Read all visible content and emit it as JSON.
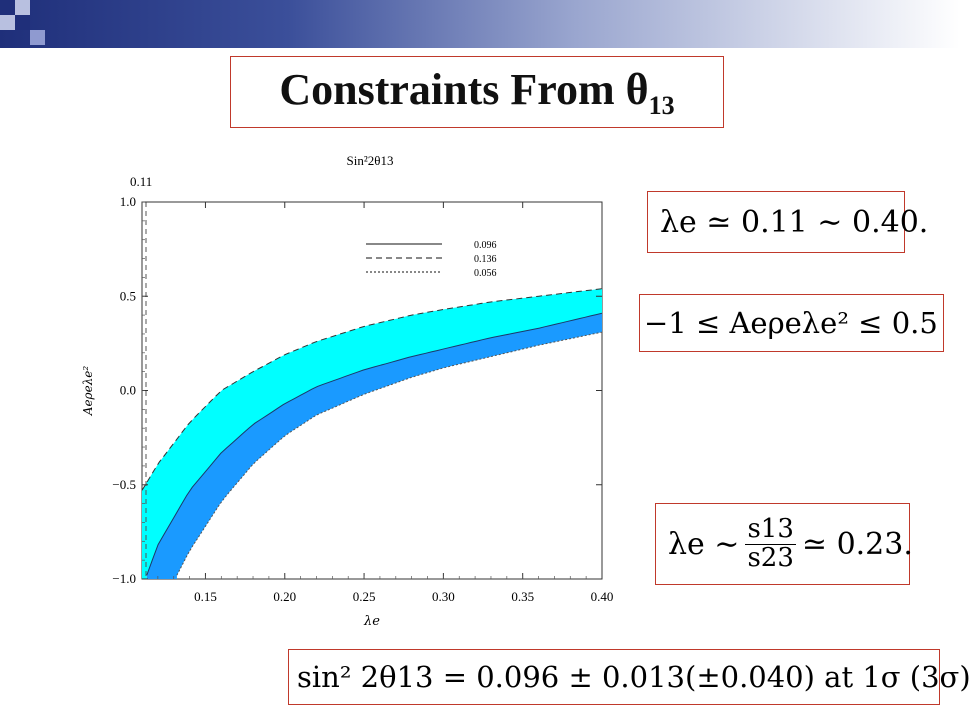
{
  "slide": {
    "title_text": "Constraints From θ",
    "title_sub": "13",
    "eq_lambda_range": "λe ≃ 0.11 ∼ 0.40.",
    "eq_A_range": "−1 ≤ Aeρeλe² ≤ 0.5",
    "eq_lambda_ratio_lhs": "λe ∼",
    "eq_lambda_ratio_num": "s13",
    "eq_lambda_ratio_den": "s23",
    "eq_lambda_ratio_rhs": "≃ 0.23.",
    "eq_sin2": "sin² 2θ13 = 0.096 ± 0.013(±0.040) at 1σ (3σ)"
  },
  "colors": {
    "band_outer": "#00ffff",
    "band_inner": "#1a9aff",
    "frame_red": "#c0392b"
  },
  "chart_data": {
    "type": "area",
    "title": "Sin²2θ13",
    "xlabel": "λe",
    "ylabel": "Aeρeλe²",
    "xlim": [
      0.11,
      0.4
    ],
    "ylim": [
      -1.0,
      1.0
    ],
    "xticks": [
      "0.15",
      "0.20",
      "0.25",
      "0.30",
      "0.35",
      "0.40"
    ],
    "yticks": [
      "−1.0",
      "−0.5",
      "0.0",
      "0.5",
      "1.0"
    ],
    "vline": {
      "x": 0.11,
      "label": "0.11"
    },
    "legend": [
      {
        "label": "0.096",
        "style": "solid"
      },
      {
        "label": "0.136",
        "style": "dashed"
      },
      {
        "label": "0.056",
        "style": "dotted"
      }
    ],
    "series": [
      {
        "name": "0.136",
        "x": [
          0.11,
          0.12,
          0.14,
          0.16,
          0.18,
          0.2,
          0.22,
          0.25,
          0.28,
          0.3,
          0.33,
          0.36,
          0.4
        ],
        "y": [
          -0.53,
          -0.39,
          -0.17,
          0.0,
          0.1,
          0.19,
          0.26,
          0.34,
          0.4,
          0.43,
          0.47,
          0.5,
          0.54
        ]
      },
      {
        "name": "0.096",
        "x": [
          0.113,
          0.12,
          0.14,
          0.16,
          0.18,
          0.2,
          0.22,
          0.25,
          0.28,
          0.3,
          0.33,
          0.36,
          0.4
        ],
        "y": [
          -0.98,
          -0.82,
          -0.53,
          -0.33,
          -0.18,
          -0.07,
          0.02,
          0.11,
          0.18,
          0.22,
          0.28,
          0.33,
          0.41
        ]
      },
      {
        "name": "0.056",
        "x": [
          0.132,
          0.14,
          0.16,
          0.18,
          0.2,
          0.22,
          0.25,
          0.28,
          0.3,
          0.33,
          0.36,
          0.4
        ],
        "y": [
          -0.98,
          -0.85,
          -0.59,
          -0.39,
          -0.24,
          -0.13,
          -0.02,
          0.07,
          0.12,
          0.18,
          0.24,
          0.31
        ]
      }
    ]
  }
}
